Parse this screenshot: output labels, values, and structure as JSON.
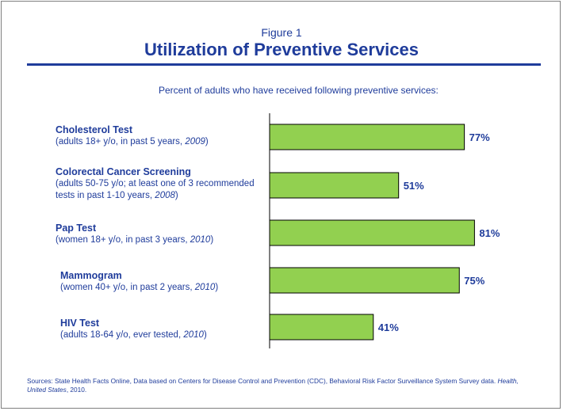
{
  "header": {
    "figure_label": "Figure 1",
    "title": "Utilization of Preventive Services",
    "subtitle": "Percent of adults who have received following preventive services:"
  },
  "colors": {
    "title_blue": "#1f3c9b",
    "bar_fill": "#92d050",
    "bar_stroke": "#000000"
  },
  "chart_data": {
    "type": "bar",
    "orientation": "horizontal",
    "title": "Utilization of Preventive Services",
    "subtitle": "Percent of adults who have received following preventive services:",
    "categories": [
      "Cholesterol Test",
      "Colorectal Cancer Screening",
      "Pap Test",
      "Mammogram",
      "HIV Test"
    ],
    "category_details": [
      {
        "pre": "(adults 18+ y/o, in past 5 years, ",
        "year": "2009",
        "post": ")"
      },
      {
        "pre": "(adults 50-75 y/o; at least one of 3 recommended tests in past 1-10 years, ",
        "year": "2008",
        "post": ")"
      },
      {
        "pre": "(women 18+ y/o, in past 3 years, ",
        "year": "2010",
        "post": ")"
      },
      {
        "pre": "(women 40+ y/o, in past 2 years, ",
        "year": "2010",
        "post": ")"
      },
      {
        "pre": "(adults 18-64 y/o, ever tested, ",
        "year": "2010",
        "post": ")"
      }
    ],
    "values": [
      77,
      51,
      81,
      75,
      41
    ],
    "value_labels": [
      "77%",
      "51%",
      "81%",
      "75%",
      "41%"
    ],
    "xlim": [
      0,
      100
    ],
    "grid": false,
    "legend": "none"
  },
  "sources": {
    "text_a": "Sources:  State Health Facts Online, Data based on Centers for Disease Control and Prevention (CDC), Behavioral Risk Factor Surveillance System Survey data.  ",
    "text_italic": "Health, United States",
    "text_b": ", 2010."
  }
}
